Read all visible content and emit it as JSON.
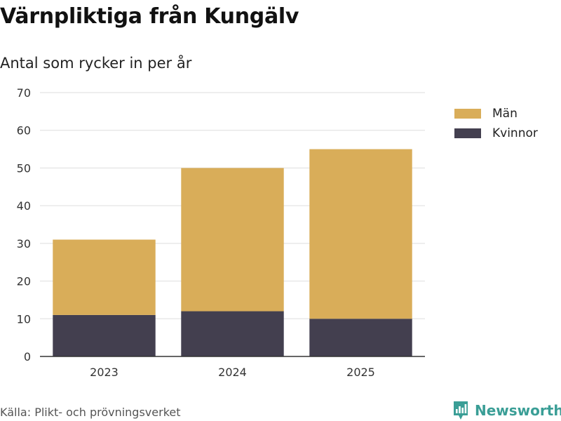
{
  "chart_data": {
    "type": "bar",
    "stacked": true,
    "title": "Värnpliktiga från Kungälv",
    "subtitle": "Antal som rycker in per år",
    "categories": [
      "2023",
      "2024",
      "2025"
    ],
    "series": [
      {
        "name": "Kvinnor",
        "values": [
          11,
          12,
          10
        ],
        "color": "#433f4f"
      },
      {
        "name": "Män",
        "values": [
          20,
          38,
          45
        ],
        "color": "#d9ad59"
      }
    ],
    "legend_order": [
      "Män",
      "Kvinnor"
    ],
    "ylim": [
      0,
      70
    ],
    "yticks": [
      0,
      10,
      20,
      30,
      40,
      50,
      60,
      70
    ],
    "xlabel": "",
    "ylabel": "",
    "grid": true,
    "legend_position": "top-right"
  },
  "source": "Källa: Plikt- och prövningsverket",
  "brand": {
    "name": "Newsworthy",
    "color": "#3a9e96",
    "icon": "bar-chart-icon"
  }
}
